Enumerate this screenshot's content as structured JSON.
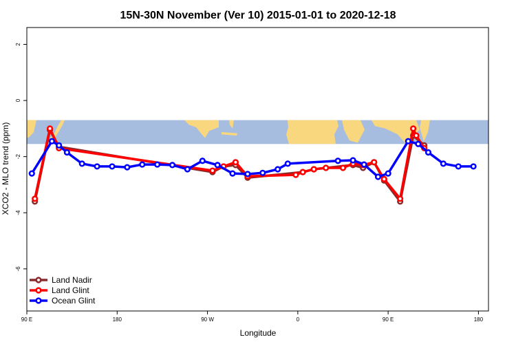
{
  "chart_data": {
    "type": "line",
    "title": "15N-30N November (Ver 10)   2015-01-01 to 2020-12-18",
    "xlabel": "Longitude",
    "ylabel": "XCO2 - MLO trend (ppm)",
    "xlim": [
      90,
      550
    ],
    "ylim": [
      -7.5,
      2.6
    ],
    "x_ticks": [
      {
        "value": 90,
        "label": "90 E"
      },
      {
        "value": 180,
        "label": "180"
      },
      {
        "value": 270,
        "label": "90 W"
      },
      {
        "value": 360,
        "label": "0"
      },
      {
        "value": 450,
        "label": "90 E"
      },
      {
        "value": 540,
        "label": "180"
      }
    ],
    "y_ticks": [
      {
        "value": 2,
        "label": "2"
      },
      {
        "value": 0,
        "label": "0"
      },
      {
        "value": -2,
        "label": "-2"
      },
      {
        "value": -4,
        "label": "-4"
      },
      {
        "value": -6,
        "label": "-6"
      }
    ],
    "grid": false,
    "legend_position": "bottom-left",
    "map_band": {
      "y_top": -0.7,
      "y_bottom": -1.55,
      "ocean_color": "#a7bde0",
      "land_color": "#f9d77e"
    },
    "series": [
      {
        "name": "Land Nadir",
        "color": "#8b2a2a",
        "points": [
          [
            98,
            -3.6
          ],
          [
            113,
            -1.05
          ],
          [
            122,
            -1.65
          ],
          [
            275,
            -2.55
          ],
          [
            286,
            -2.35
          ],
          [
            298,
            -2.3
          ],
          [
            310,
            -2.75
          ],
          [
            365,
            -2.55
          ],
          [
            376,
            -2.45
          ],
          [
            415,
            -2.3
          ],
          [
            425,
            -2.4
          ],
          [
            436,
            -2.2
          ],
          [
            446,
            -2.85
          ],
          [
            462,
            -3.6
          ],
          [
            475,
            -1.25
          ],
          [
            486,
            -1.6
          ]
        ]
      },
      {
        "name": "Land Glint",
        "color": "#ff0000",
        "points": [
          [
            98,
            -3.5
          ],
          [
            113,
            -1.0
          ],
          [
            122,
            -1.7
          ],
          [
            275,
            -2.5
          ],
          [
            286,
            -2.35
          ],
          [
            298,
            -2.2
          ],
          [
            310,
            -2.7
          ],
          [
            358,
            -2.65
          ],
          [
            365,
            -2.55
          ],
          [
            376,
            -2.45
          ],
          [
            388,
            -2.4
          ],
          [
            405,
            -2.4
          ],
          [
            415,
            -2.25
          ],
          [
            425,
            -2.3
          ],
          [
            436,
            -2.2
          ],
          [
            446,
            -2.8
          ],
          [
            462,
            -3.5
          ],
          [
            475,
            -1.0
          ],
          [
            478,
            -1.25
          ],
          [
            486,
            -1.7
          ]
        ]
      },
      {
        "name": "Ocean Glint",
        "color": "#0000ff",
        "points": [
          [
            95,
            -2.6
          ],
          [
            115,
            -1.45
          ],
          [
            122,
            -1.6
          ],
          [
            130,
            -1.85
          ],
          [
            145,
            -2.25
          ],
          [
            160,
            -2.35
          ],
          [
            175,
            -2.35
          ],
          [
            190,
            -2.38
          ],
          [
            205,
            -2.28
          ],
          [
            220,
            -2.28
          ],
          [
            235,
            -2.3
          ],
          [
            250,
            -2.45
          ],
          [
            265,
            -2.15
          ],
          [
            280,
            -2.3
          ],
          [
            295,
            -2.6
          ],
          [
            310,
            -2.62
          ],
          [
            325,
            -2.58
          ],
          [
            340,
            -2.45
          ],
          [
            350,
            -2.25
          ],
          [
            400,
            -2.15
          ],
          [
            415,
            -2.13
          ],
          [
            426,
            -2.28
          ],
          [
            440,
            -2.72
          ],
          [
            450,
            -2.6
          ],
          [
            470,
            -1.45
          ],
          [
            480,
            -1.55
          ],
          [
            490,
            -1.85
          ],
          [
            505,
            -2.25
          ],
          [
            520,
            -2.35
          ],
          [
            535,
            -2.35
          ]
        ]
      }
    ]
  }
}
